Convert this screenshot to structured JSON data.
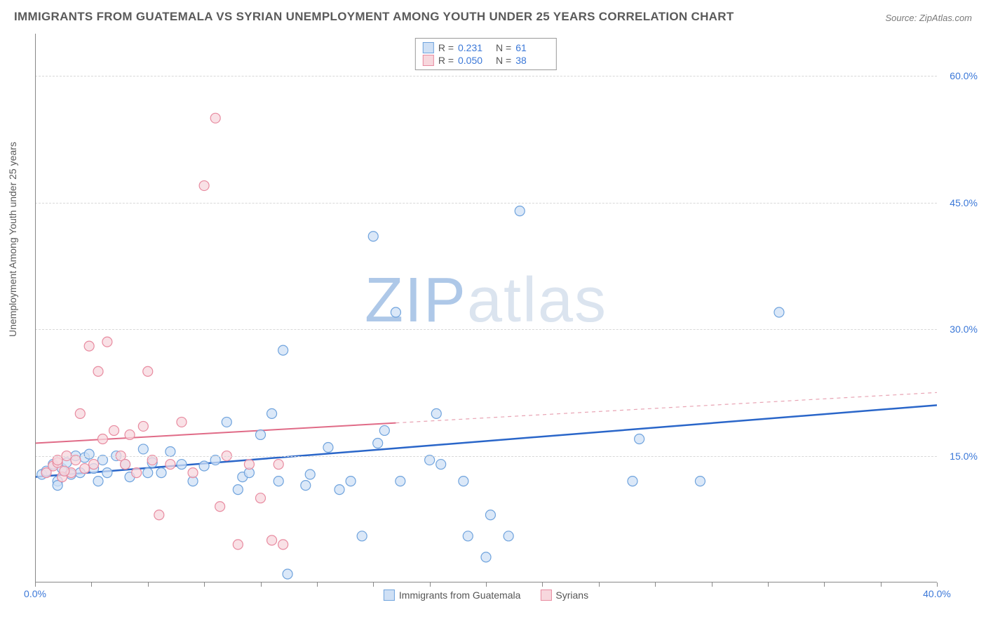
{
  "title": "IMMIGRANTS FROM GUATEMALA VS SYRIAN UNEMPLOYMENT AMONG YOUTH UNDER 25 YEARS CORRELATION CHART",
  "source": "Source: ZipAtlas.com",
  "ylabel": "Unemployment Among Youth under 25 years",
  "watermark_zip": "ZIP",
  "watermark_atlas": "atlas",
  "chart": {
    "type": "scatter",
    "xlim": [
      0,
      40
    ],
    "ylim": [
      0,
      65
    ],
    "xtick_labels": [
      "0.0%",
      "40.0%"
    ],
    "xtick_positions": [
      0,
      40
    ],
    "minor_xticks": [
      0,
      2.5,
      5,
      7.5,
      10,
      12.5,
      15,
      17.5,
      20,
      22.5,
      25,
      27.5,
      30,
      32.5,
      35,
      37.5,
      40
    ],
    "ytick_labels": [
      "15.0%",
      "30.0%",
      "45.0%",
      "60.0%"
    ],
    "ytick_positions": [
      15,
      30,
      45,
      60
    ],
    "grid_color": "#d8d8d8",
    "background_color": "#ffffff",
    "axis_color": "#888888",
    "marker_radius": 7,
    "marker_stroke_width": 1.2,
    "series": [
      {
        "name": "Immigrants from Guatemala",
        "fill_color": "#cfe0f5",
        "stroke_color": "#6fa3dd",
        "swatch_fill": "#cfe0f5",
        "swatch_border": "#6fa3dd",
        "R": "0.231",
        "N": "61",
        "regression": {
          "x1": 0,
          "y1": 12.5,
          "x2": 40,
          "y2": 21.0,
          "solid_until_x": 40,
          "line_color": "#2a66c9",
          "line_width": 2.5
        },
        "points": [
          [
            0.3,
            12.8
          ],
          [
            0.5,
            13.2
          ],
          [
            0.8,
            14.0
          ],
          [
            1.0,
            12.0
          ],
          [
            1.2,
            13.5
          ],
          [
            1.4,
            14.2
          ],
          [
            1.6,
            12.8
          ],
          [
            1.8,
            15.0
          ],
          [
            2.0,
            13.0
          ],
          [
            2.2,
            14.8
          ],
          [
            2.4,
            15.2
          ],
          [
            2.6,
            13.5
          ],
          [
            2.8,
            12.0
          ],
          [
            3.0,
            14.5
          ],
          [
            3.2,
            13.0
          ],
          [
            3.6,
            15.0
          ],
          [
            4.0,
            14.0
          ],
          [
            4.2,
            12.5
          ],
          [
            4.8,
            15.8
          ],
          [
            5.0,
            13.0
          ],
          [
            5.2,
            14.2
          ],
          [
            5.6,
            13.0
          ],
          [
            6.0,
            15.5
          ],
          [
            6.5,
            14.0
          ],
          [
            7.0,
            12.0
          ],
          [
            7.5,
            13.8
          ],
          [
            8.0,
            14.5
          ],
          [
            8.5,
            19.0
          ],
          [
            9.0,
            11.0
          ],
          [
            9.2,
            12.5
          ],
          [
            9.5,
            13.0
          ],
          [
            10.0,
            17.5
          ],
          [
            10.5,
            20.0
          ],
          [
            10.8,
            12.0
          ],
          [
            11.0,
            27.5
          ],
          [
            11.2,
            1.0
          ],
          [
            12.0,
            11.5
          ],
          [
            12.2,
            12.8
          ],
          [
            13.0,
            16.0
          ],
          [
            13.5,
            11.0
          ],
          [
            14.0,
            12.0
          ],
          [
            14.5,
            5.5
          ],
          [
            15.0,
            41.0
          ],
          [
            15.2,
            16.5
          ],
          [
            15.5,
            18.0
          ],
          [
            16.0,
            32.0
          ],
          [
            16.2,
            12.0
          ],
          [
            17.5,
            14.5
          ],
          [
            17.8,
            20.0
          ],
          [
            18.0,
            14.0
          ],
          [
            19.0,
            12.0
          ],
          [
            19.2,
            5.5
          ],
          [
            20.0,
            3.0
          ],
          [
            20.2,
            8.0
          ],
          [
            21.0,
            5.5
          ],
          [
            21.5,
            44.0
          ],
          [
            26.5,
            12.0
          ],
          [
            26.8,
            17.0
          ],
          [
            33.0,
            32.0
          ],
          [
            29.5,
            12.0
          ],
          [
            1.0,
            11.5
          ]
        ]
      },
      {
        "name": "Syrians",
        "fill_color": "#f7d7dd",
        "stroke_color": "#e88ba0",
        "swatch_fill": "#f7d7dd",
        "swatch_border": "#e88ba0",
        "R": "0.050",
        "N": "38",
        "regression": {
          "x1": 0,
          "y1": 16.5,
          "x2": 40,
          "y2": 22.5,
          "solid_until_x": 16,
          "line_color": "#e06b87",
          "line_width": 2,
          "dash_color": "#e8a3b3"
        },
        "points": [
          [
            0.5,
            13.0
          ],
          [
            0.8,
            13.8
          ],
          [
            1.0,
            14.2
          ],
          [
            1.2,
            12.5
          ],
          [
            1.4,
            15.0
          ],
          [
            1.6,
            13.0
          ],
          [
            1.8,
            14.5
          ],
          [
            2.0,
            20.0
          ],
          [
            2.2,
            13.5
          ],
          [
            2.4,
            28.0
          ],
          [
            2.6,
            14.0
          ],
          [
            2.8,
            25.0
          ],
          [
            3.0,
            17.0
          ],
          [
            3.2,
            28.5
          ],
          [
            3.5,
            18.0
          ],
          [
            3.8,
            15.0
          ],
          [
            4.0,
            14.0
          ],
          [
            4.2,
            17.5
          ],
          [
            4.5,
            13.0
          ],
          [
            4.8,
            18.5
          ],
          [
            5.0,
            25.0
          ],
          [
            5.2,
            14.5
          ],
          [
            5.5,
            8.0
          ],
          [
            6.0,
            14.0
          ],
          [
            6.5,
            19.0
          ],
          [
            7.0,
            13.0
          ],
          [
            7.5,
            47.0
          ],
          [
            8.0,
            55.0
          ],
          [
            8.2,
            9.0
          ],
          [
            8.5,
            15.0
          ],
          [
            9.0,
            4.5
          ],
          [
            9.5,
            14.0
          ],
          [
            10.0,
            10.0
          ],
          [
            10.5,
            5.0
          ],
          [
            11.0,
            4.5
          ],
          [
            10.8,
            14.0
          ],
          [
            1.0,
            14.5
          ],
          [
            1.3,
            13.2
          ]
        ]
      }
    ]
  },
  "legend_bottom": [
    "Immigrants from Guatemala",
    "Syrians"
  ],
  "legend_top_labels": {
    "R": "R  =",
    "N": "N  ="
  }
}
